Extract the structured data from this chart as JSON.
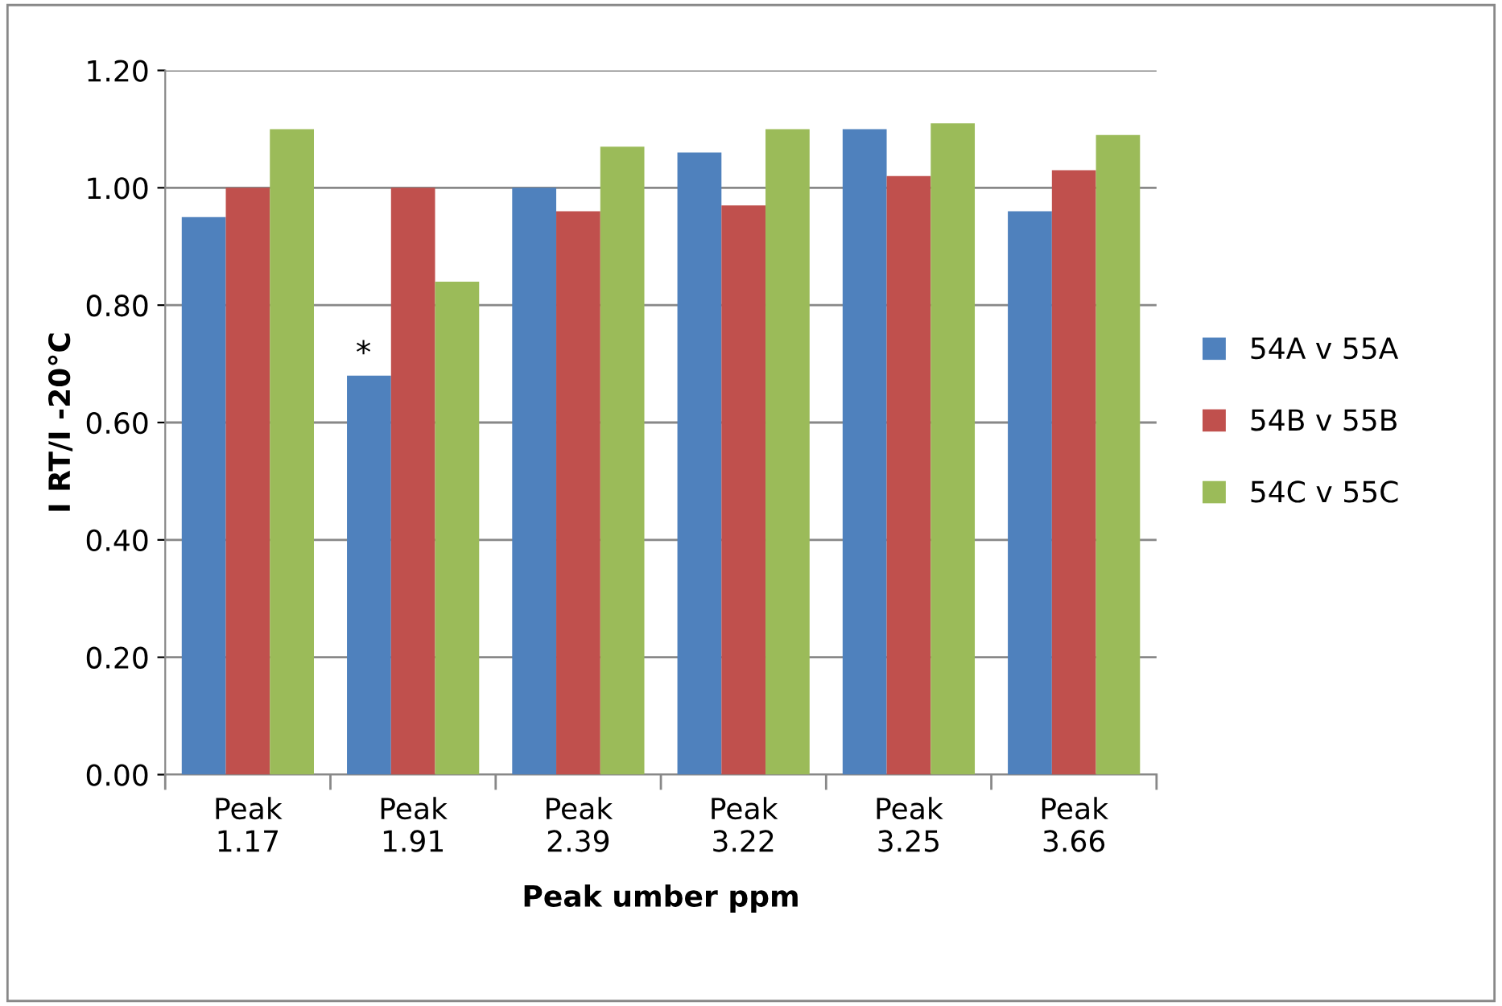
{
  "chart_data": {
    "type": "bar",
    "xlabel": "Peak umber ppm",
    "ylabel": "I RT/I -20°C",
    "categories": [
      "Peak\n1.17",
      "Peak\n1.91",
      "Peak\n2.39",
      "Peak\n3.22",
      "Peak\n3.25",
      "Peak\n3.66"
    ],
    "series": [
      {
        "name": "54A v 55A",
        "color": "#4f81bd",
        "values": [
          0.95,
          0.68,
          1.0,
          1.06,
          1.1,
          0.96
        ]
      },
      {
        "name": "54B v 55B",
        "color": "#c0504d",
        "values": [
          1.0,
          1.0,
          0.96,
          0.97,
          1.02,
          1.03
        ]
      },
      {
        "name": "54C v 55C",
        "color": "#9bbb59",
        "values": [
          1.1,
          0.84,
          1.07,
          1.1,
          1.11,
          1.09
        ]
      }
    ],
    "annotations": [
      "*"
    ],
    "ylim": [
      0,
      1.2
    ],
    "yticks": [
      {
        "value": 0,
        "label": "0.00"
      },
      {
        "value": 0.2,
        "label": "0.20"
      },
      {
        "value": 0.4,
        "label": "0.40"
      },
      {
        "value": 0.6,
        "label": "0.60"
      },
      {
        "value": 0.8,
        "label": "0.80"
      },
      {
        "value": 1.0,
        "label": "1.00"
      },
      {
        "value": 1.2,
        "label": "1.20"
      }
    ],
    "grid": "y",
    "legend": "right"
  }
}
